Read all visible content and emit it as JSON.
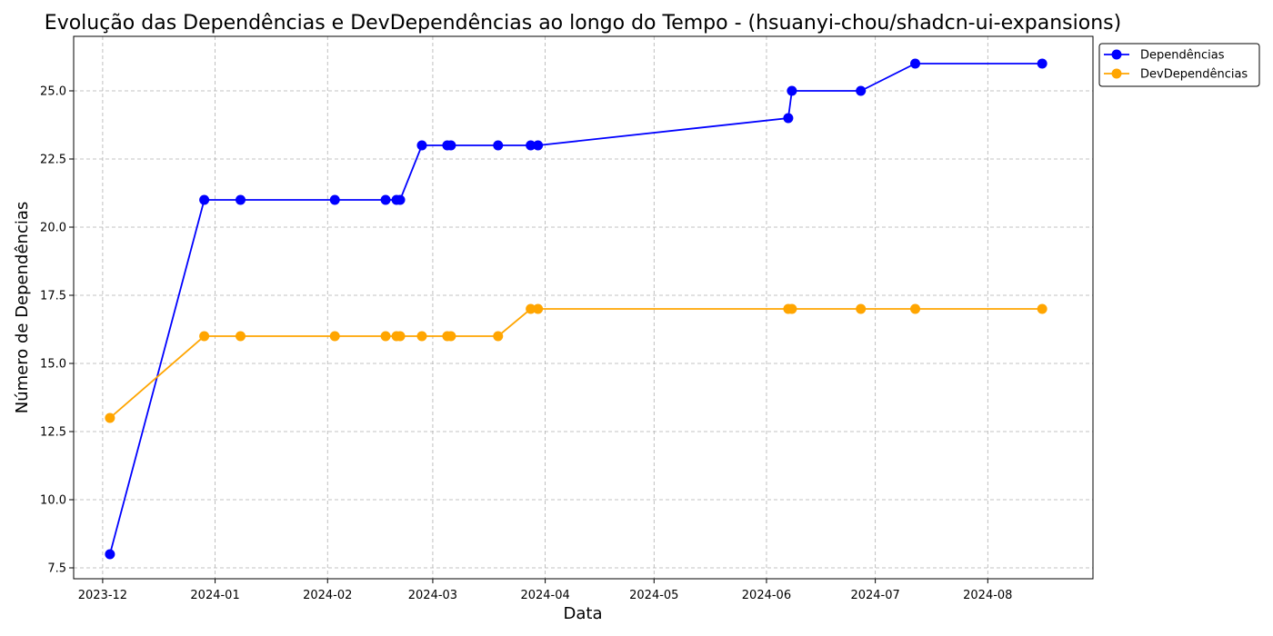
{
  "chart_data": {
    "type": "line",
    "title": "Evolução das Dependências e DevDependências ao longo do Tempo - (hsuanyi-chou/shadcn-ui-expansions)",
    "xlabel": "Data",
    "ylabel": "Número de Dependências",
    "x_ticks": [
      "2023-12-01",
      "2024-01-01",
      "2024-02-01",
      "2024-03-01",
      "2024-04-01",
      "2024-05-01",
      "2024-06-01",
      "2024-07-01",
      "2024-08-01"
    ],
    "x_tick_labels": [
      "2023-12",
      "2024-01",
      "2024-02",
      "2024-03",
      "2024-04",
      "2024-05",
      "2024-06",
      "2024-07",
      "2024-08"
    ],
    "xlim": [
      "2023-11-23",
      "2024-08-30"
    ],
    "y_ticks": [
      7.5,
      10.0,
      12.5,
      15.0,
      17.5,
      20.0,
      22.5,
      25.0
    ],
    "y_tick_labels": [
      "7.5",
      "10.0",
      "12.5",
      "15.0",
      "17.5",
      "20.0",
      "22.5",
      "25.0"
    ],
    "ylim": [
      7.1,
      27.0
    ],
    "grid": true,
    "legend_position": "outside-top-right",
    "x": [
      "2023-12-03",
      "2023-12-29",
      "2024-01-08",
      "2024-02-03",
      "2024-02-17",
      "2024-02-20",
      "2024-02-21",
      "2024-02-27",
      "2024-03-05",
      "2024-03-06",
      "2024-03-19",
      "2024-03-28",
      "2024-03-30",
      "2024-06-07",
      "2024-06-08",
      "2024-06-27",
      "2024-07-12",
      "2024-08-16"
    ],
    "series": [
      {
        "name": "Dependências",
        "color": "#0000ff",
        "values": [
          8,
          21,
          21,
          21,
          21,
          21,
          21,
          23,
          23,
          23,
          23,
          23,
          23,
          24,
          25,
          25,
          26,
          26
        ]
      },
      {
        "name": "DevDependências",
        "color": "#ffa500",
        "values": [
          13,
          16,
          16,
          16,
          16,
          16,
          16,
          16,
          16,
          16,
          16,
          17,
          17,
          17,
          17,
          17,
          17,
          17
        ]
      }
    ]
  }
}
